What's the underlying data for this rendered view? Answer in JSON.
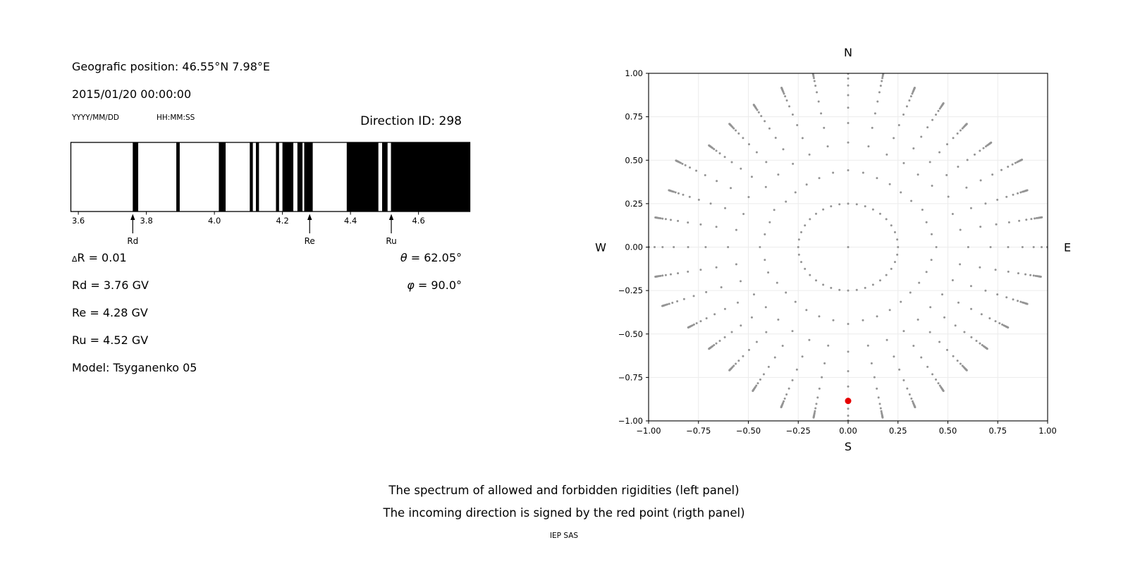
{
  "page": {
    "caption_line1": "The spectrum of allowed and forbidden rigidities (left panel)",
    "caption_line2": "The incoming direction is signed by the red point (rigth panel)",
    "credit": "IEP SAS"
  },
  "header": {
    "geographic_position": "Geografic position: 46.55°N 7.98°E",
    "datetime": "2015/01/20 00:00:00",
    "date_format_hint": "YYYY/MM/DD",
    "time_format_hint": "HH:MM:SS",
    "direction_id": "Direction ID: 298"
  },
  "parameters": {
    "delta_r_symbol": "∆",
    "delta_r_text": "R = 0.01",
    "rd": "Rd = 3.76 GV",
    "re": "Re = 4.28 GV",
    "ru": "Ru = 4.52 GV",
    "model": "Model: Tsyganenko 05",
    "theta_symbol": "θ",
    "theta_text": " = 62.05°",
    "phi_symbol": "φ",
    "phi_text": " = 90.0°"
  },
  "chart_data": [
    {
      "type": "bar",
      "subtype": "rigidity-barcode-spectrum",
      "description": "Allowed (black) and forbidden (white) rigidity bands in GV",
      "xlim": [
        3.578,
        4.751
      ],
      "xticks": [
        3.6,
        3.8,
        4.0,
        4.2,
        4.4,
        4.6
      ],
      "allowed_color": "#000000",
      "forbidden_color": "#ffffff",
      "allowed_bands_gv": [
        [
          3.76,
          3.776
        ],
        [
          3.888,
          3.898
        ],
        [
          4.013,
          4.033
        ],
        [
          4.104,
          4.113
        ],
        [
          4.122,
          4.131
        ],
        [
          4.181,
          4.19
        ],
        [
          4.2,
          4.232
        ],
        [
          4.244,
          4.259
        ],
        [
          4.264,
          4.289
        ],
        [
          4.389,
          4.482
        ],
        [
          4.493,
          4.509
        ],
        [
          4.519,
          4.751
        ]
      ],
      "markers": [
        {
          "label": "Rd",
          "value": 3.76
        },
        {
          "label": "Re",
          "value": 4.28
        },
        {
          "label": "Ru",
          "value": 4.52
        }
      ]
    },
    {
      "type": "scatter",
      "subtype": "incoming-direction-map",
      "xlim": [
        -1,
        1
      ],
      "ylim": [
        -1,
        1
      ],
      "xticks": [
        -1.0,
        -0.75,
        -0.5,
        -0.25,
        0.0,
        0.25,
        0.5,
        0.75,
        1.0
      ],
      "yticks": [
        1.0,
        0.75,
        0.5,
        0.25,
        0.0,
        -0.25,
        -0.5,
        -0.75,
        -1.0
      ],
      "grid": true,
      "grid_color": "#ececec",
      "compass": {
        "top": "N",
        "bottom": "S",
        "left": "W",
        "right": "E"
      },
      "dot_color": "#949494",
      "center_dot": true,
      "ring": {
        "radius": 0.25,
        "count": 36
      },
      "spokes": {
        "count": 36,
        "angle_step_deg": 10,
        "base_radius": 0.25,
        "tip_radii": [
          1.05,
          0.98,
          0.95,
          1.0,
          0.93,
          0.92,
          0.95,
          0.97,
          1.02,
          1.05,
          1.02,
          0.97,
          0.94,
          0.92,
          0.905,
          0.99,
          0.95,
          0.975,
          1.05,
          0.975,
          0.985,
          0.92,
          0.905,
          0.92,
          0.95,
          0.975,
          0.99,
          1.05,
          0.99,
          0.975,
          0.95,
          0.92,
          0.905,
          0.92,
          0.95,
          0.975
        ],
        "radial_profile": [
          0.24,
          0.44,
          0.58,
          0.69,
          0.78,
          0.85,
          0.9,
          0.935,
          0.958,
          0.972,
          0.982,
          0.99,
          0.996,
          1.0,
          1.004,
          1.008
        ]
      },
      "red_point": {
        "x": 0.0,
        "y": -0.885,
        "color": "#e60000"
      }
    }
  ]
}
